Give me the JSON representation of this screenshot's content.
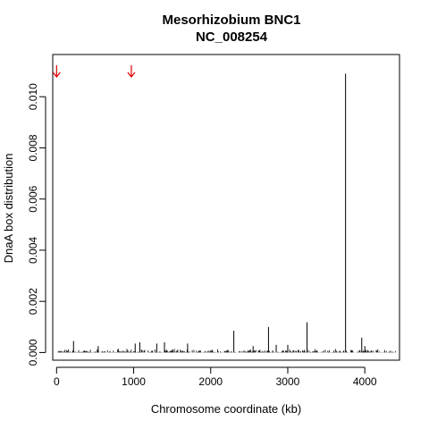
{
  "chart_data": {
    "type": "line",
    "title": "Mesorhizobium BNC1",
    "subtitle": "NC_008254",
    "xlabel": "Chromosome coordinate (kb)",
    "ylabel": "DnaA box distribution",
    "xlim": [
      -50,
      4450
    ],
    "ylim": [
      -0.0003,
      0.01165
    ],
    "x_ticks": [
      0,
      1000,
      2000,
      3000,
      4000
    ],
    "x_tick_labels": [
      "0",
      "1000",
      "2000",
      "3000",
      "4000"
    ],
    "y_ticks": [
      0.0,
      0.002,
      0.004,
      0.006,
      0.008,
      0.01
    ],
    "y_tick_labels": [
      "0.000",
      "0.002",
      "0.004",
      "0.006",
      "0.008",
      "0.010"
    ],
    "grid": false,
    "baseline_noise_max": 0.00015,
    "series": [
      {
        "x": [
          220,
          540,
          1020,
          1080,
          1300,
          1400,
          1700,
          2300,
          2550,
          2750,
          2850,
          3000,
          3250,
          3750,
          3960,
          4000
        ],
        "y": [
          0.00045,
          0.00025,
          0.00035,
          0.0004,
          0.00035,
          0.0004,
          0.00035,
          0.00085,
          0.00025,
          0.001,
          0.0003,
          0.0003,
          0.00118,
          0.0109,
          0.00058,
          0.00025
        ]
      }
    ],
    "markers": {
      "color": "#dd0000",
      "x": [
        0,
        970
      ]
    }
  }
}
